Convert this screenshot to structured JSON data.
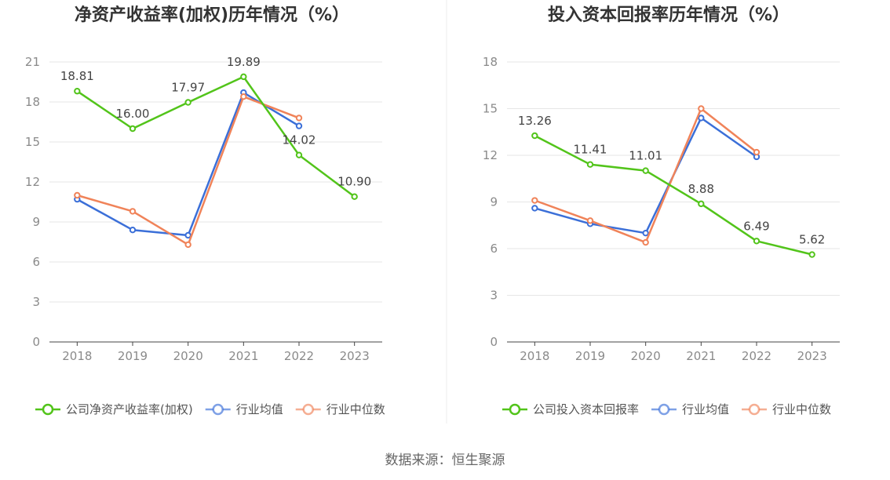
{
  "source": "数据来源：恒生聚源",
  "colors": {
    "company": "#52c41a",
    "avg": "#3b6fd8",
    "median": "#f08359",
    "grid": "#e6e6e6",
    "axis": "#444444",
    "divider": "#ececec"
  },
  "chart_data": [
    {
      "type": "line",
      "title": "净资产收益率(加权)历年情况（%）",
      "categories": [
        "2018",
        "2019",
        "2020",
        "2021",
        "2022",
        "2023"
      ],
      "ylim": [
        0,
        21
      ],
      "yticks": [
        "0",
        "3",
        "6",
        "9",
        "12",
        "15",
        "18",
        "21"
      ],
      "grid": true,
      "legend_position": "bottom",
      "series": [
        {
          "name": "公司净资产收益率(加权)",
          "color_key": "company",
          "values": [
            18.81,
            16.0,
            17.97,
            19.89,
            14.02,
            10.9
          ],
          "labels": [
            "18.81",
            "16.00",
            "17.97",
            "19.89",
            "14.02",
            "10.90"
          ]
        },
        {
          "name": "行业均值",
          "color_key": "avg",
          "values": [
            10.7,
            8.4,
            8.0,
            18.7,
            16.2,
            null
          ]
        },
        {
          "name": "行业中位数",
          "color_key": "median",
          "values": [
            11.0,
            9.8,
            7.3,
            18.4,
            16.8,
            null
          ]
        }
      ]
    },
    {
      "type": "line",
      "title": "投入资本回报率历年情况（%）",
      "categories": [
        "2018",
        "2019",
        "2020",
        "2021",
        "2022",
        "2023"
      ],
      "ylim": [
        0,
        18
      ],
      "yticks": [
        "0",
        "3",
        "6",
        "9",
        "12",
        "15",
        "18"
      ],
      "grid": true,
      "legend_position": "bottom",
      "series": [
        {
          "name": "公司投入资本回报率",
          "color_key": "company",
          "values": [
            13.26,
            11.41,
            11.01,
            8.88,
            6.49,
            5.62
          ],
          "labels": [
            "13.26",
            "11.41",
            "11.01",
            "8.88",
            "6.49",
            "5.62"
          ]
        },
        {
          "name": "行业均值",
          "color_key": "avg",
          "values": [
            8.6,
            7.6,
            7.0,
            14.4,
            11.9,
            null
          ]
        },
        {
          "name": "行业中位数",
          "color_key": "median",
          "values": [
            9.1,
            7.8,
            6.4,
            15.0,
            12.2,
            null
          ]
        }
      ]
    }
  ]
}
